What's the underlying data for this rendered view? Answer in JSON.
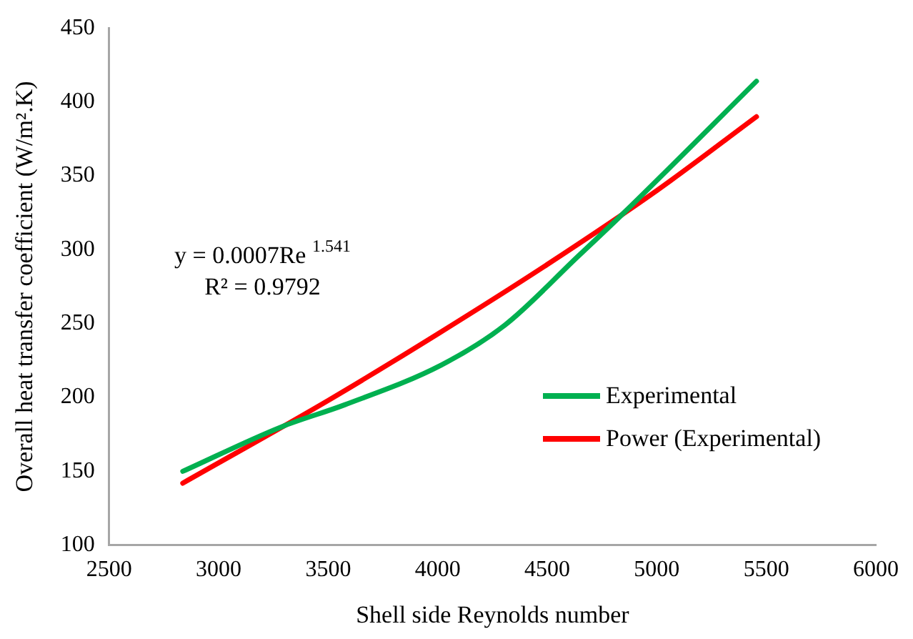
{
  "chart_data": {
    "type": "line",
    "xlabel": "Shell side Reynolds number",
    "ylabel": "Overall heat transfer coefficient (W/m².K)",
    "xlim": [
      2500,
      6000
    ],
    "xticks": [
      2500,
      3000,
      3500,
      4000,
      4500,
      5000,
      5500,
      6000
    ],
    "ylim": [
      100,
      450
    ],
    "yticks": [
      100,
      150,
      200,
      250,
      300,
      350,
      400,
      450
    ],
    "grid": false,
    "legend": "right",
    "marker": "none",
    "line_style": "solid",
    "series": [
      {
        "name": "Experimental",
        "color": "#00b050",
        "x": [
          2836,
          3285,
          3575,
          4017,
          4307,
          4637,
          4850,
          5455
        ],
        "values": [
          150,
          180,
          195,
          222,
          249,
          295,
          325,
          414
        ]
      },
      {
        "name": "Power (Experimental)",
        "color": "#ff0000",
        "x": [
          2836,
          3500,
          4000,
          4500,
          5000,
          5455
        ],
        "values": [
          142,
          198,
          243,
          290,
          340,
          390
        ]
      }
    ],
    "annotations": [
      "y = 0.0007Re $^{1.541}$",
      "R² = 0.9792"
    ]
  }
}
